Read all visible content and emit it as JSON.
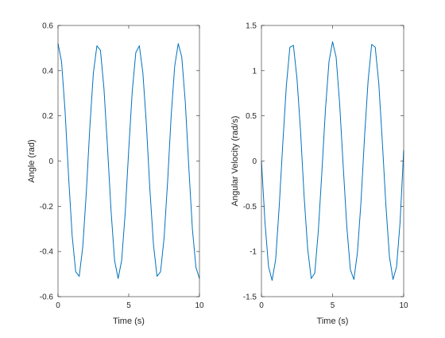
{
  "chart_data": [
    {
      "type": "line",
      "title": "",
      "xlabel": "Time (s)",
      "ylabel": "Angle (rad)",
      "xlim": [
        0,
        10
      ],
      "ylim": [
        -0.6,
        0.6
      ],
      "xticks": [
        0,
        5,
        10
      ],
      "xtick_labels": [
        "0",
        "5",
        "10"
      ],
      "yticks": [
        -0.6,
        -0.4,
        -0.2,
        0,
        0.2,
        0.4,
        0.6
      ],
      "ytick_labels": [
        "-0.6",
        "-0.4",
        "-0.2",
        "0",
        "0.2",
        "0.4",
        "0.6"
      ],
      "grid": false,
      "series": [
        {
          "color": "#0072bd",
          "x": [
            0,
            0.25,
            0.5,
            0.75,
            1.0,
            1.25,
            1.5,
            1.75,
            2.0,
            2.25,
            2.5,
            2.75,
            3.0,
            3.25,
            3.5,
            3.75,
            4.0,
            4.25,
            4.5,
            4.75,
            5.0,
            5.25,
            5.5,
            5.75,
            6.0,
            6.25,
            6.5,
            6.75,
            7.0,
            7.25,
            7.5,
            7.75,
            8.0,
            8.25,
            8.5,
            8.75,
            9.0,
            9.25,
            9.5,
            9.75,
            10.0
          ],
          "y": [
            0.52,
            0.44,
            0.22,
            -0.07,
            -0.33,
            -0.49,
            -0.51,
            -0.38,
            -0.14,
            0.15,
            0.39,
            0.51,
            0.49,
            0.32,
            0.06,
            -0.22,
            -0.44,
            -0.52,
            -0.44,
            -0.23,
            0.05,
            0.31,
            0.48,
            0.51,
            0.39,
            0.16,
            -0.13,
            -0.37,
            -0.51,
            -0.49,
            -0.34,
            -0.09,
            0.2,
            0.42,
            0.52,
            0.46,
            0.26,
            -0.03,
            -0.3,
            -0.47,
            -0.52
          ]
        }
      ]
    },
    {
      "type": "line",
      "title": "",
      "xlabel": "Time (s)",
      "ylabel": "Angular Velocity (rad/s)",
      "xlim": [
        0,
        10
      ],
      "ylim": [
        -1.5,
        1.5
      ],
      "xticks": [
        0,
        5,
        10
      ],
      "xtick_labels": [
        "0",
        "5",
        "10"
      ],
      "yticks": [
        -1.5,
        -1,
        -0.5,
        0,
        0.5,
        1,
        1.5
      ],
      "ytick_labels": [
        "-1.5",
        "-1",
        "-0.5",
        "0",
        "0.5",
        "1",
        "1.5"
      ],
      "grid": false,
      "series": [
        {
          "color": "#0072bd",
          "x": [
            0,
            0.25,
            0.5,
            0.75,
            1.0,
            1.25,
            1.5,
            1.75,
            2.0,
            2.25,
            2.5,
            2.75,
            3.0,
            3.25,
            3.5,
            3.75,
            4.0,
            4.25,
            4.5,
            4.75,
            5.0,
            5.25,
            5.5,
            5.75,
            6.0,
            6.25,
            6.5,
            6.75,
            7.0,
            7.25,
            7.5,
            7.75,
            8.0,
            8.25,
            8.5,
            8.75,
            9.0,
            9.25,
            9.5,
            9.75,
            10.0
          ],
          "y": [
            0.0,
            -0.68,
            -1.17,
            -1.32,
            -1.09,
            -0.5,
            0.19,
            0.83,
            1.26,
            1.28,
            0.91,
            0.33,
            -0.39,
            -0.97,
            -1.3,
            -1.24,
            -0.77,
            -0.12,
            0.57,
            1.1,
            1.32,
            1.15,
            0.63,
            -0.06,
            -0.72,
            -1.2,
            -1.31,
            -1.01,
            -0.45,
            0.27,
            0.89,
            1.29,
            1.26,
            0.86,
            0.21,
            -0.49,
            -1.06,
            -1.31,
            -1.17,
            -0.67,
            0.12
          ]
        }
      ]
    }
  ]
}
